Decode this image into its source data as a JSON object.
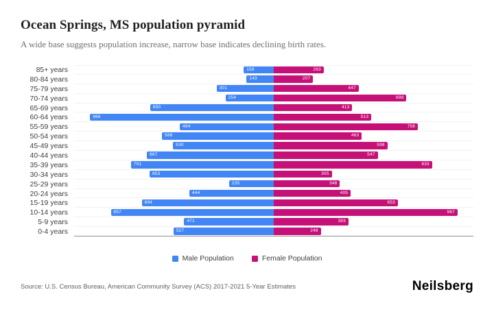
{
  "header": {
    "title": "Ocean Springs, MS population pyramid",
    "subtitle": "A wide base suggests population increase, narrow base indicates declining birth rates."
  },
  "legend": {
    "male_label": "Male Population",
    "female_label": "Female Population"
  },
  "footer": {
    "source": "Source: U.S. Census Bureau, American Community Survey (ACS) 2017-2021 5-Year Estimates",
    "brand": "Neilsberg"
  },
  "colors": {
    "male": "#4285F4",
    "female": "#C51177",
    "gridline": "#f1f1f1",
    "axis_line": "#8f8f8f"
  },
  "chart_data": {
    "type": "bar",
    "subtype": "population_pyramid",
    "orientation": "horizontal",
    "title": "Ocean Springs, MS population pyramid",
    "xlabel": "",
    "ylabel": "",
    "grid": "horizontal row lines",
    "legend_position": "bottom",
    "axis_max_per_side": 1050,
    "categories": [
      "85+ years",
      "80-84 years",
      "75-79 years",
      "70-74 years",
      "65-69 years",
      "60-64 years",
      "55-59 years",
      "50-54 years",
      "45-49 years",
      "40-44 years",
      "35-39 years",
      "30-34 years",
      "25-29 years",
      "20-24 years",
      "15-19 years",
      "10-14 years",
      "5-9 years",
      "0-4 years"
    ],
    "series": [
      {
        "name": "Male Population",
        "color": "#4285F4",
        "values": [
          158,
          143,
          301,
          254,
          650,
          966,
          494,
          588,
          530,
          667,
          751,
          653,
          235,
          444,
          694,
          857,
          471,
          527
        ]
      },
      {
        "name": "Female Population",
        "color": "#C51177",
        "values": [
          263,
          207,
          447,
          698,
          413,
          513,
          758,
          463,
          598,
          547,
          833,
          305,
          348,
          405,
          653,
          967,
          393,
          248
        ]
      }
    ]
  }
}
